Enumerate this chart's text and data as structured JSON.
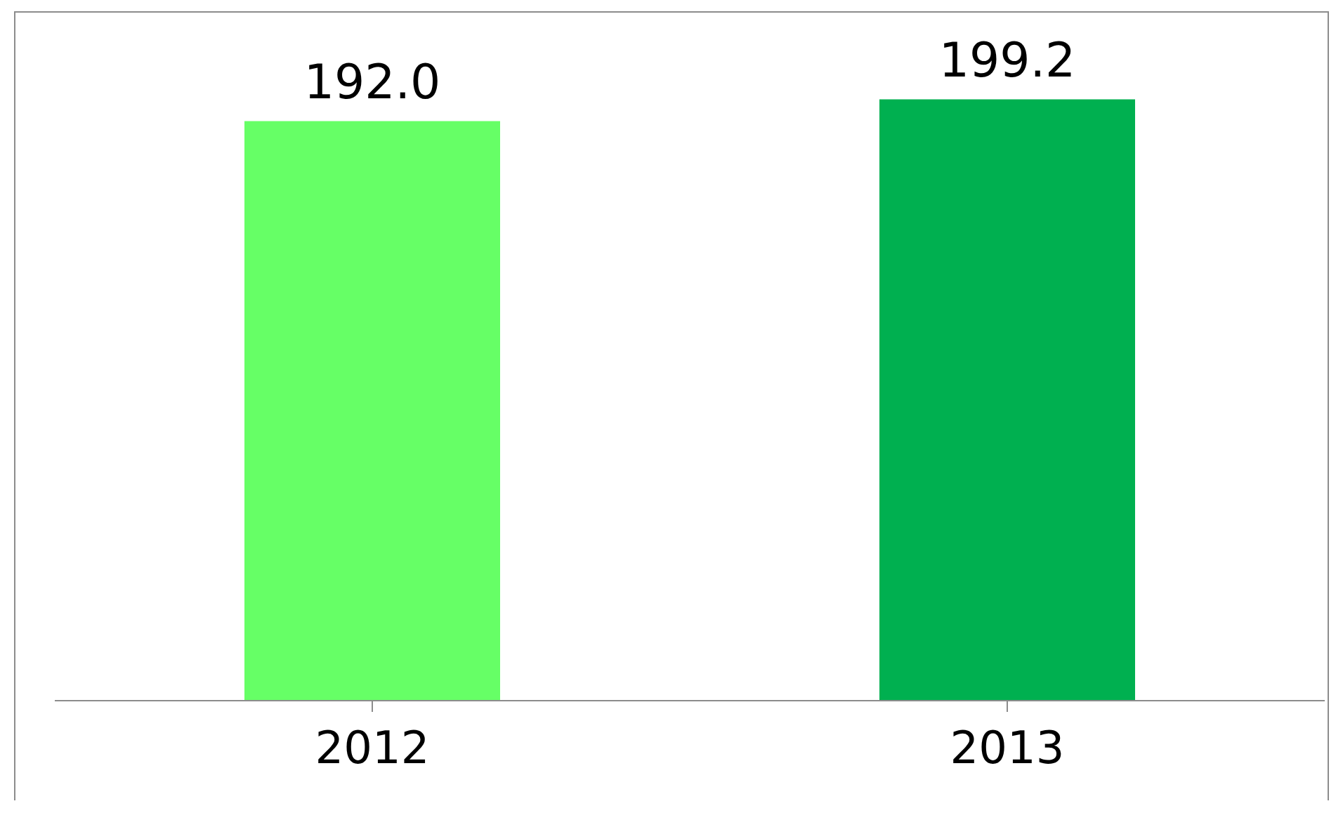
{
  "chart_data": {
    "type": "bar",
    "categories": [
      "2012",
      "2013"
    ],
    "values": [
      192.0,
      199.2
    ],
    "colors": [
      "#66ff66",
      "#00b050"
    ],
    "value_labels": [
      "192.0",
      "199.2"
    ]
  }
}
